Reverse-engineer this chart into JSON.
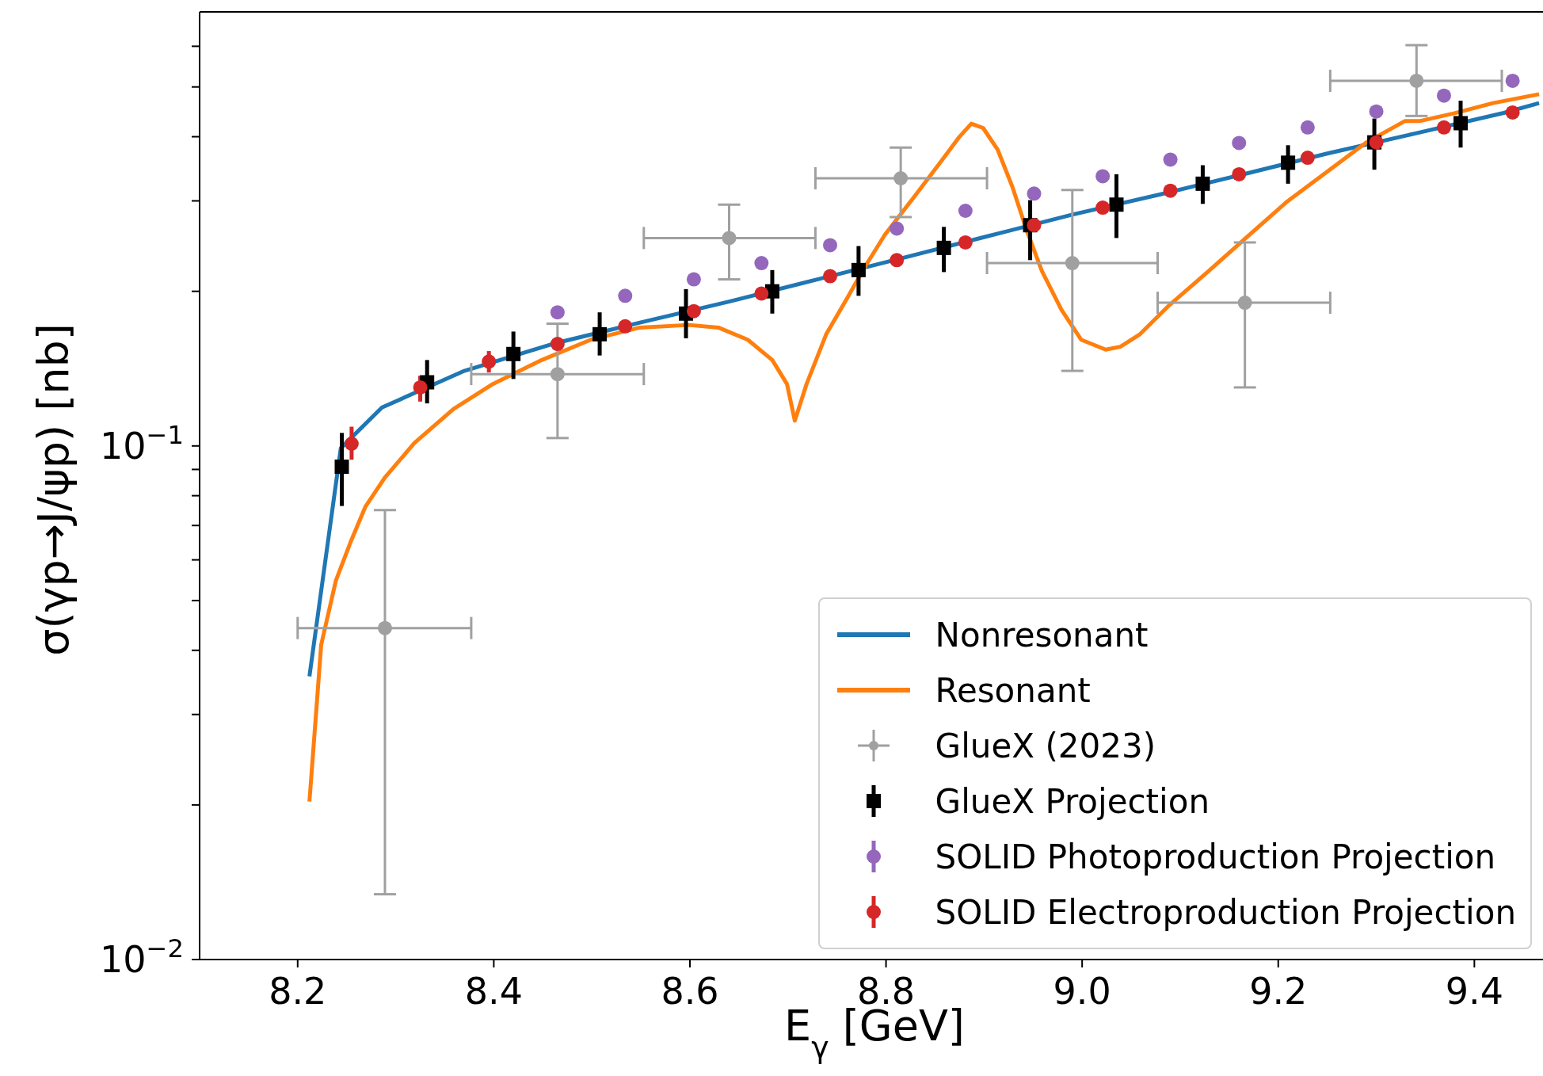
{
  "chart_data": {
    "type": "line",
    "xlabel": "E$_{γ}$ [GeV]",
    "ylabel": "σ(γp→J/ψp) [nb]",
    "log": "y",
    "grid": false,
    "legend": "bottom right",
    "line_style": "solid",
    "xlim": [
      8.1,
      9.47
    ],
    "xticks": [
      {
        "value": 8.2,
        "label": "8.2"
      },
      {
        "value": 8.4,
        "label": "8.4"
      },
      {
        "value": 8.6,
        "label": "8.6"
      },
      {
        "value": 8.8,
        "label": "8.8"
      },
      {
        "value": 9.0,
        "label": "9.0"
      },
      {
        "value": 9.2,
        "label": "9.2"
      },
      {
        "value": 9.4,
        "label": "9.4"
      }
    ],
    "ylim": [
      0.01,
      0.7
    ],
    "yticks": [
      {
        "value": 0.01,
        "label": "10$^{−2}$"
      },
      {
        "value": 0.02,
        "label": null
      },
      {
        "value": 0.03,
        "label": null
      },
      {
        "value": 0.04,
        "label": null
      },
      {
        "value": 0.05,
        "label": null
      },
      {
        "value": 0.06,
        "label": null
      },
      {
        "value": 0.07,
        "label": null
      },
      {
        "value": 0.08,
        "label": null
      },
      {
        "value": 0.09,
        "label": null
      },
      {
        "value": 0.1,
        "label": "10$^{−1}$"
      },
      {
        "value": 0.2,
        "label": null
      },
      {
        "value": 0.3,
        "label": null
      },
      {
        "value": 0.4,
        "label": null
      },
      {
        "value": 0.5,
        "label": null
      },
      {
        "value": 0.6,
        "label": null
      }
    ],
    "series": [
      {
        "name": "Nonresonant",
        "marker": "none",
        "color": "#1f77b4",
        "x": [
          8.212,
          8.244,
          8.286,
          8.37,
          8.46,
          8.55,
          8.64,
          8.73,
          8.82,
          8.9,
          8.99,
          9.08,
          9.17,
          9.25,
          9.34,
          9.43,
          9.466
        ],
        "values": [
          0.0356,
          0.099,
          0.1188,
          0.14,
          0.158,
          0.174,
          0.191,
          0.211,
          0.233,
          0.255,
          0.282,
          0.309,
          0.34,
          0.371,
          0.406,
          0.445,
          0.465
        ]
      },
      {
        "name": "Resonant",
        "marker": "none",
        "color": "#ff7f0e",
        "x": [
          8.212,
          8.224,
          8.239,
          8.254,
          8.269,
          8.289,
          8.319,
          8.359,
          8.399,
          8.449,
          8.499,
          8.549,
          8.599,
          8.629,
          8.659,
          8.684,
          8.699,
          8.707,
          8.719,
          8.739,
          8.759,
          8.779,
          8.799,
          8.829,
          8.859,
          8.874,
          8.887,
          8.899,
          8.914,
          8.929,
          8.944,
          8.959,
          8.979,
          8.999,
          9.024,
          9.039,
          9.059,
          9.089,
          9.129,
          9.169,
          9.209,
          9.249,
          9.289,
          9.329,
          9.344,
          9.379,
          9.419,
          9.466
        ],
        "values": [
          0.0203,
          0.041,
          0.0547,
          0.065,
          0.0761,
          0.0868,
          0.1013,
          0.118,
          0.132,
          0.147,
          0.161,
          0.17,
          0.172,
          0.17,
          0.161,
          0.147,
          0.132,
          0.112,
          0.132,
          0.165,
          0.192,
          0.224,
          0.258,
          0.306,
          0.364,
          0.398,
          0.424,
          0.416,
          0.377,
          0.319,
          0.261,
          0.219,
          0.184,
          0.161,
          0.154,
          0.156,
          0.165,
          0.188,
          0.219,
          0.256,
          0.299,
          0.341,
          0.389,
          0.429,
          0.429,
          0.444,
          0.465,
          0.484
        ]
      },
      {
        "name": "GlueX (2023)",
        "type": "scatter",
        "marker": "circle",
        "color": "#a0a0a0",
        "x": [
          8.289,
          8.465,
          8.64,
          8.815,
          8.99,
          9.166,
          9.341
        ],
        "values": [
          0.0442,
          0.138,
          0.254,
          0.332,
          0.227,
          0.19,
          0.514
        ],
        "errors": [
          [
            0.0134,
            0.075
          ],
          [
            0.1036,
            0.173
          ],
          [
            0.211,
            0.295
          ],
          [
            0.279,
            0.381
          ],
          [
            0.14,
            0.315
          ],
          [
            0.13,
            0.249
          ],
          [
            0.439,
            0.603
          ]
        ],
        "xerrors": [
          [
            8.2,
            8.377
          ],
          [
            8.377,
            8.553
          ],
          [
            8.553,
            8.728
          ],
          [
            8.728,
            8.903
          ],
          [
            8.903,
            9.077
          ],
          [
            9.077,
            9.253
          ],
          [
            9.253,
            9.428
          ]
        ]
      },
      {
        "name": "GlueX Projection",
        "type": "scatter",
        "marker": "square",
        "color": "#000000",
        "x": [
          8.245,
          8.332,
          8.42,
          8.508,
          8.596,
          8.684,
          8.772,
          8.859,
          8.947,
          9.035,
          9.123,
          9.21,
          9.298,
          9.386
        ],
        "values": [
          0.0911,
          0.133,
          0.151,
          0.165,
          0.181,
          0.2,
          0.22,
          0.243,
          0.269,
          0.295,
          0.324,
          0.356,
          0.39,
          0.425
        ],
        "errors": [
          [
            0.0764,
            0.106
          ],
          [
            0.121,
            0.147
          ],
          [
            0.135,
            0.167
          ],
          [
            0.15,
            0.182
          ],
          [
            0.162,
            0.202
          ],
          [
            0.181,
            0.22
          ],
          [
            0.196,
            0.245
          ],
          [
            0.218,
            0.267
          ],
          [
            0.23,
            0.301
          ],
          [
            0.254,
            0.338
          ],
          [
            0.296,
            0.352
          ],
          [
            0.324,
            0.385
          ],
          [
            0.345,
            0.434
          ],
          [
            0.381,
            0.47
          ]
        ]
      },
      {
        "name": "SOLID Photoproduction Projection",
        "type": "scatter",
        "marker": "circle",
        "color": "#9467bd",
        "x": [
          8.465,
          8.534,
          8.604,
          8.673,
          8.743,
          8.811,
          8.881,
          8.951,
          9.021,
          9.09,
          9.16,
          9.23,
          9.3,
          9.369,
          9.439
        ],
        "values": [
          0.182,
          0.196,
          0.211,
          0.227,
          0.246,
          0.265,
          0.287,
          0.31,
          0.335,
          0.361,
          0.389,
          0.417,
          0.448,
          0.481,
          0.514
        ]
      },
      {
        "name": "SOLID Electroproduction Projection",
        "type": "scatter",
        "marker": "circle",
        "color": "#d62728",
        "x": [
          8.255,
          8.325,
          8.395,
          8.465,
          8.534,
          8.604,
          8.673,
          8.743,
          8.811,
          8.881,
          8.951,
          9.021,
          9.09,
          9.16,
          9.23,
          9.3,
          9.369,
          9.439
        ],
        "values": [
          0.101,
          0.13,
          0.146,
          0.158,
          0.171,
          0.183,
          0.198,
          0.214,
          0.23,
          0.249,
          0.269,
          0.291,
          0.314,
          0.338,
          0.364,
          0.39,
          0.417,
          0.446
        ],
        "errors": [
          [
            0.094,
            0.109
          ],
          [
            0.122,
            0.137
          ],
          [
            0.139,
            0.153
          ],
          null,
          null,
          null,
          null,
          null,
          null,
          null,
          null,
          null,
          null,
          null,
          null,
          null,
          null,
          null
        ]
      }
    ]
  }
}
